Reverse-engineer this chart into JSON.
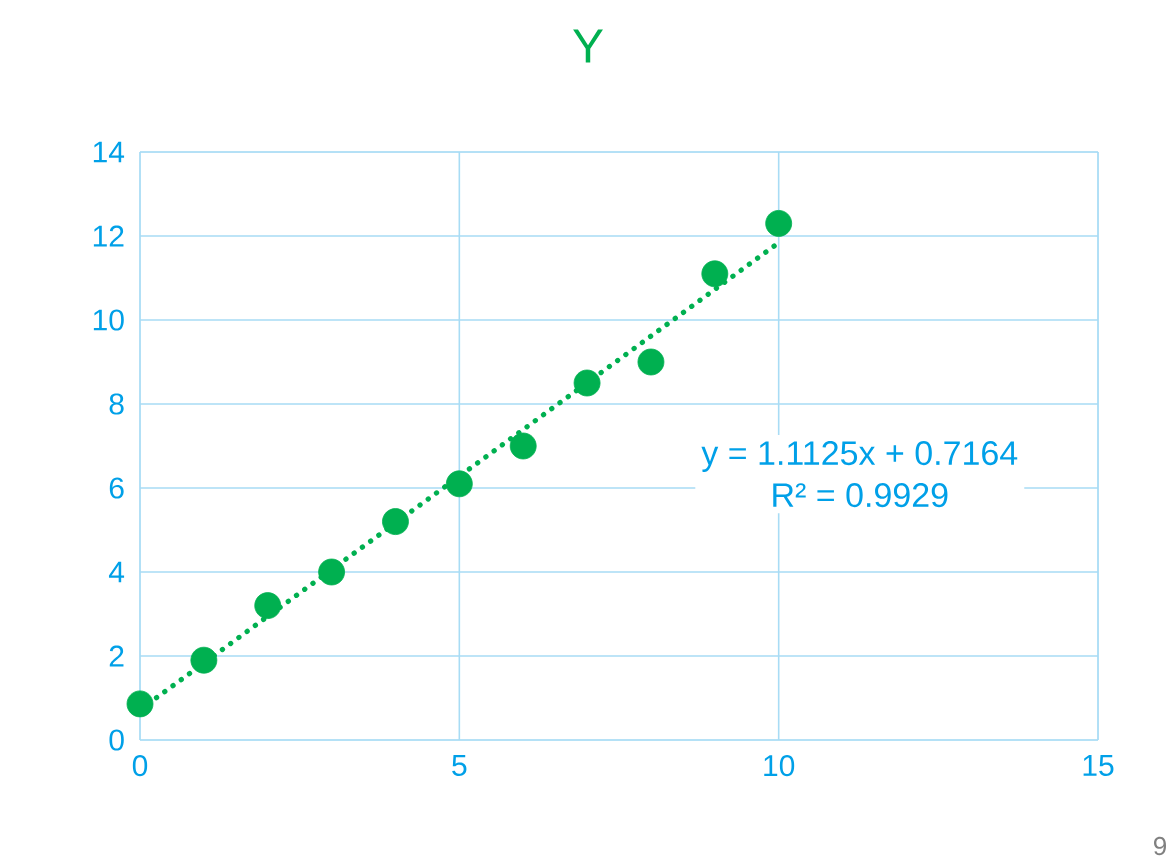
{
  "chart_data": {
    "type": "scatter",
    "title": "Y",
    "grid": true,
    "marker": "circle",
    "xlim": [
      0,
      15
    ],
    "xticks": [
      0,
      5,
      10,
      15
    ],
    "ylim": [
      0,
      14
    ],
    "yticks": [
      0,
      2,
      4,
      6,
      8,
      10,
      12,
      14
    ],
    "series": [
      {
        "color": "#00b050",
        "x": [
          0,
          1,
          2,
          3,
          4,
          5,
          6,
          7,
          8,
          9,
          10
        ],
        "values": [
          0.86,
          1.9,
          3.2,
          4.0,
          5.2,
          6.1,
          7.0,
          8.5,
          9.0,
          11.1,
          12.3
        ]
      },
      {
        "type": "line",
        "line_style": "dotted",
        "marker": "none",
        "color": "#00b050",
        "x": [
          0,
          10
        ],
        "values": [
          0.72,
          11.84
        ]
      }
    ],
    "annotations": [
      "y = 1.1125x + 0.7164",
      "R² = 0.9929",
      "9"
    ]
  }
}
